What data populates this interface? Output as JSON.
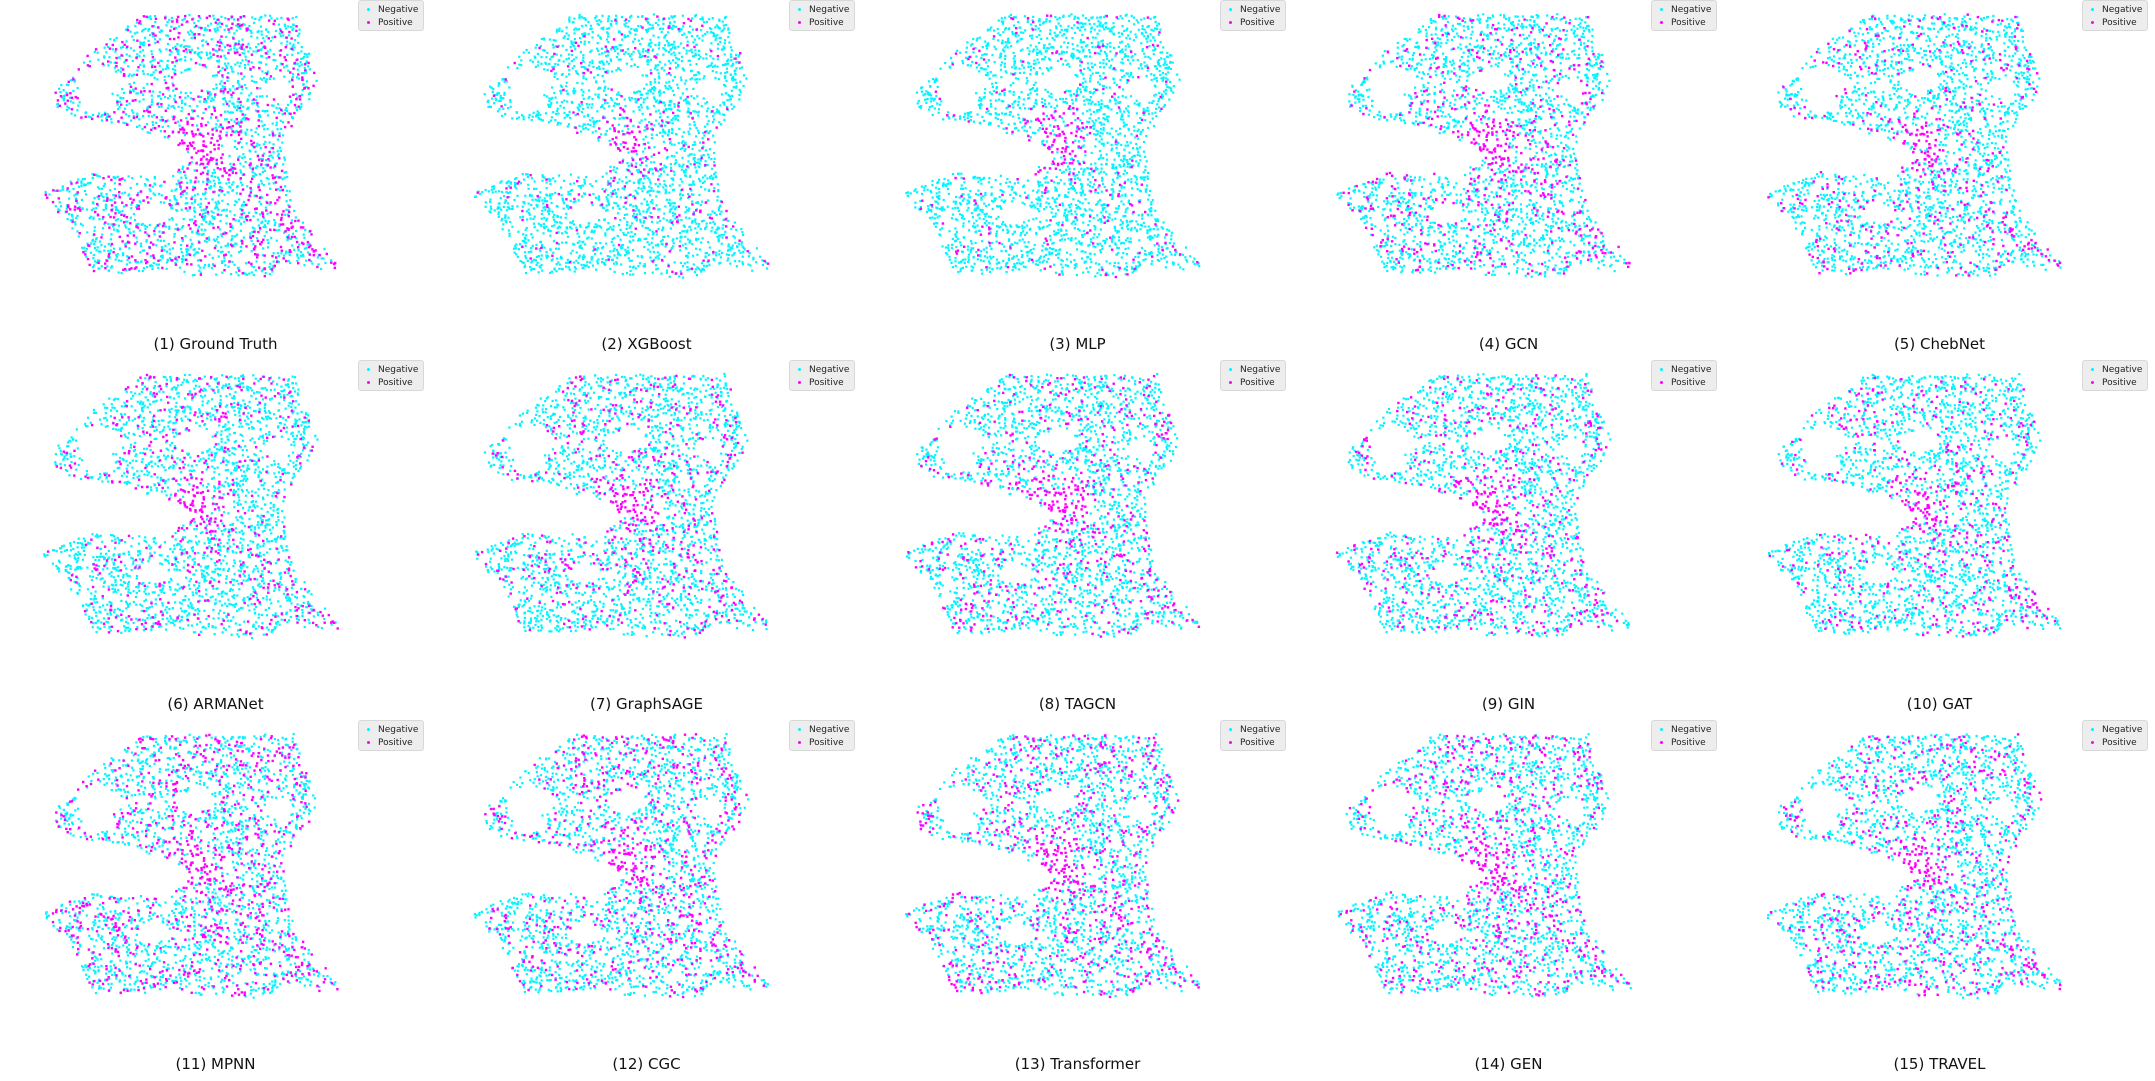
{
  "colors": {
    "negative": "#00f5ff",
    "positive": "#ff00ff"
  },
  "legend": {
    "negative_label": "Negative",
    "positive_label": "Positive"
  },
  "chart_data": [
    {
      "type": "scatter",
      "caption": "(1) Ground Truth",
      "positive_share": 0.38
    },
    {
      "type": "scatter",
      "caption": "(2) XGBoost",
      "positive_share": 0.12
    },
    {
      "type": "scatter",
      "caption": "(3) MLP",
      "positive_share": 0.1
    },
    {
      "type": "scatter",
      "caption": "(4) GCN",
      "positive_share": 0.26
    },
    {
      "type": "scatter",
      "caption": "(5) ChebNet",
      "positive_share": 0.22
    },
    {
      "type": "scatter",
      "caption": "(6) ARMANet",
      "positive_share": 0.24
    },
    {
      "type": "scatter",
      "caption": "(7) GraphSAGE",
      "positive_share": 0.25
    },
    {
      "type": "scatter",
      "caption": "(8) TAGCN",
      "positive_share": 0.25
    },
    {
      "type": "scatter",
      "caption": "(9) GIN",
      "positive_share": 0.24
    },
    {
      "type": "scatter",
      "caption": "(10) GAT",
      "positive_share": 0.22
    },
    {
      "type": "scatter",
      "caption": "(11) MPNN",
      "positive_share": 0.35
    },
    {
      "type": "scatter",
      "caption": "(12) CGC",
      "positive_share": 0.32
    },
    {
      "type": "scatter",
      "caption": "(13) Transformer",
      "positive_share": 0.33
    },
    {
      "type": "scatter",
      "caption": "(14) GEN",
      "positive_share": 0.34
    },
    {
      "type": "scatter",
      "caption": "(15) TRAVEL",
      "positive_share": 0.3
    }
  ]
}
